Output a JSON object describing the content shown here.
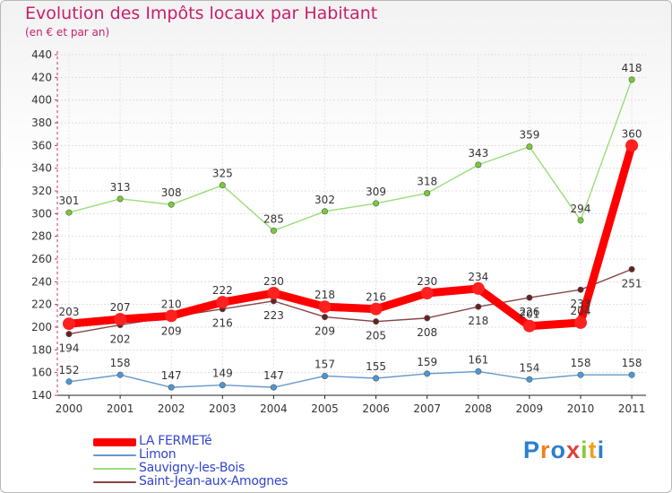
{
  "header": {
    "title": "Evolution des Impôts locaux par Habitant",
    "subtitle": "(en € et par an)"
  },
  "brand": {
    "text": "Proxiti",
    "letter_colors": [
      "#2a7fd0",
      "#f08020",
      "#2a7fd0",
      "#e04040",
      "#8ac83c",
      "#f0a020",
      "#2a7fd0"
    ]
  },
  "chart_data": {
    "type": "line",
    "x": [
      "2000",
      "2001",
      "2002",
      "2003",
      "2004",
      "2005",
      "2006",
      "2007",
      "2008",
      "2009",
      "2010",
      "2011"
    ],
    "ylim": [
      140,
      440
    ],
    "yticks": [
      140,
      160,
      180,
      200,
      220,
      240,
      260,
      280,
      300,
      320,
      340,
      360,
      380,
      400,
      420,
      440
    ],
    "grid": true,
    "legend_position": "bottom-left",
    "series": [
      {
        "name": "LA FERMETé",
        "color": "#ff0000",
        "marker_color": "#ff2020",
        "emphasis": true,
        "values": [
          203,
          207,
          210,
          222,
          230,
          218,
          216,
          230,
          234,
          201,
          204,
          360
        ]
      },
      {
        "name": "Limon",
        "color": "#6699cc",
        "marker_color": "#4a9ad8",
        "values": [
          152,
          158,
          147,
          149,
          147,
          157,
          155,
          159,
          161,
          154,
          158,
          158
        ]
      },
      {
        "name": "Sauvigny-les-Bois",
        "color": "#99dd77",
        "marker_color": "#77cc33",
        "values": [
          301,
          313,
          308,
          325,
          285,
          302,
          309,
          318,
          343,
          359,
          294,
          418
        ]
      },
      {
        "name": "Saint-Jean-aux-Amognes",
        "color": "#884444",
        "marker_color": "#662222",
        "values": [
          194,
          202,
          209,
          216,
          223,
          209,
          205,
          208,
          218,
          226,
          233,
          251
        ]
      }
    ],
    "labels": [
      {
        "series": 0,
        "values": [
          "203",
          "207",
          "210",
          "222",
          "230",
          "218",
          "216",
          "230",
          "234",
          "201",
          "204",
          "360"
        ]
      },
      {
        "series": 1,
        "values": [
          "152",
          "158",
          "147",
          "149",
          "147",
          "157",
          "155",
          "159",
          "161",
          "154",
          "158",
          "158"
        ]
      },
      {
        "series": 2,
        "values": [
          "301",
          "313",
          "308",
          "325",
          "285",
          "302",
          "309",
          "318",
          "343",
          "359",
          "294",
          "418"
        ]
      },
      {
        "series": 3,
        "values": [
          "194",
          "202",
          "209",
          "216",
          "223",
          "209",
          "205",
          "208",
          "218",
          "226",
          "233",
          "251"
        ]
      }
    ]
  }
}
